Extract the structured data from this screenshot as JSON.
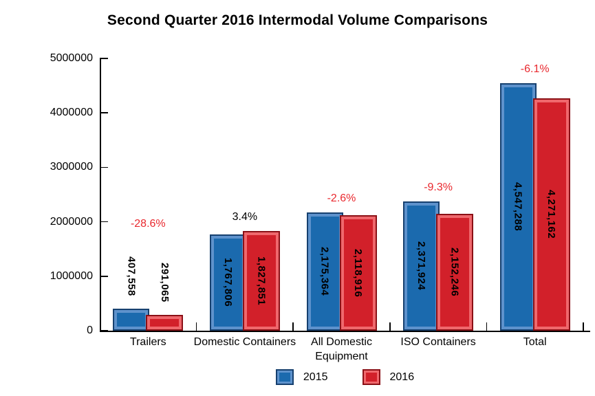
{
  "title": "Second Quarter 2016 Intermodal Volume Comparisons",
  "chart_data": {
    "type": "bar",
    "title": "Second Quarter 2016 Intermodal Volume Comparisons",
    "categories": [
      "Trailers",
      "Domestic Containers",
      "All Domestic Equipment",
      "ISO Containers",
      "Total"
    ],
    "series": [
      {
        "name": "2015",
        "color": "#1B6AAE",
        "values": [
          407558,
          1767806,
          2175364,
          2371924,
          4547288
        ],
        "value_labels": [
          "407,558",
          "1,767,806",
          "2,175,364",
          "2,371,924",
          "4,547,288"
        ]
      },
      {
        "name": "2016",
        "color": "#D2202A",
        "values": [
          291065,
          1827851,
          2118916,
          2152246,
          4271162
        ],
        "value_labels": [
          "291,065",
          "1,827,851",
          "2,118,916",
          "2,152,246",
          "4,271,162"
        ]
      }
    ],
    "pct_change_labels": [
      "-28.6%",
      "3.4%",
      "-2.6%",
      "-9.3%",
      "-6.1%"
    ],
    "pct_change_colors": [
      "#E9282E",
      "#000000",
      "#E9282E",
      "#E9282E",
      "#E9282E"
    ],
    "y_tick_labels": [
      "0",
      "1000000",
      "2000000",
      "3000000",
      "4000000",
      "5000000"
    ],
    "ylim": [
      0,
      5000000
    ],
    "grid": false,
    "legend_position": "bottom",
    "legend_entries": [
      "2015",
      "2016"
    ]
  }
}
